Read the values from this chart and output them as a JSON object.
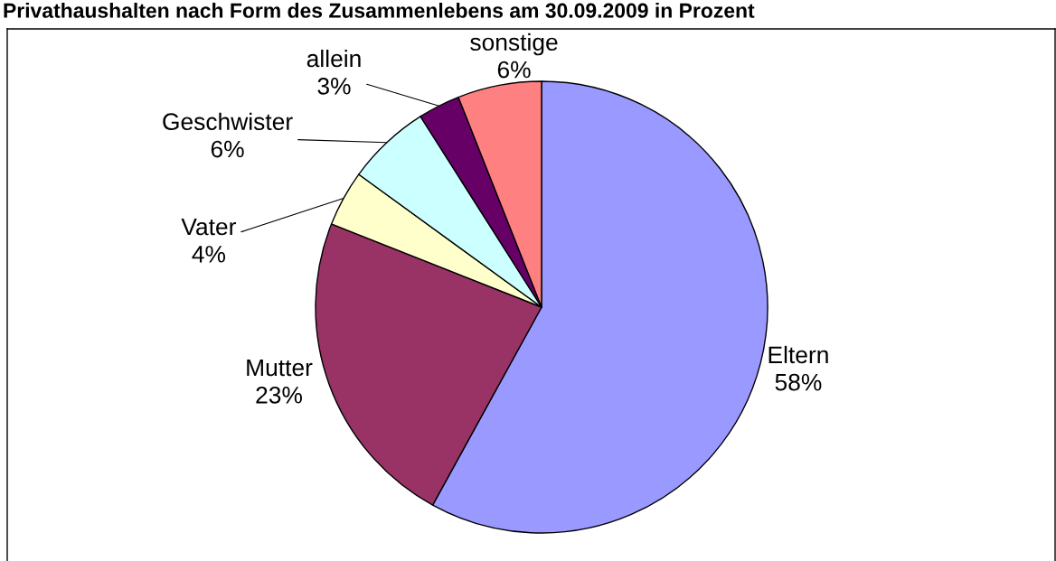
{
  "chart_data": {
    "type": "pie",
    "title": "Privathaushalten nach Form des Zusammenlebens am 30.09.2009 in Prozent",
    "categories": [
      "Eltern",
      "Mutter",
      "Vater",
      "Geschwister",
      "allein",
      "sonstige"
    ],
    "values": [
      58,
      23,
      4,
      6,
      3,
      6
    ],
    "value_labels": [
      "58%",
      "23%",
      "4%",
      "6%",
      "3%",
      "6%"
    ],
    "colors": [
      "#9999ff",
      "#993366",
      "#ffffcc",
      "#ccffff",
      "#660066",
      "#ff8080"
    ]
  }
}
